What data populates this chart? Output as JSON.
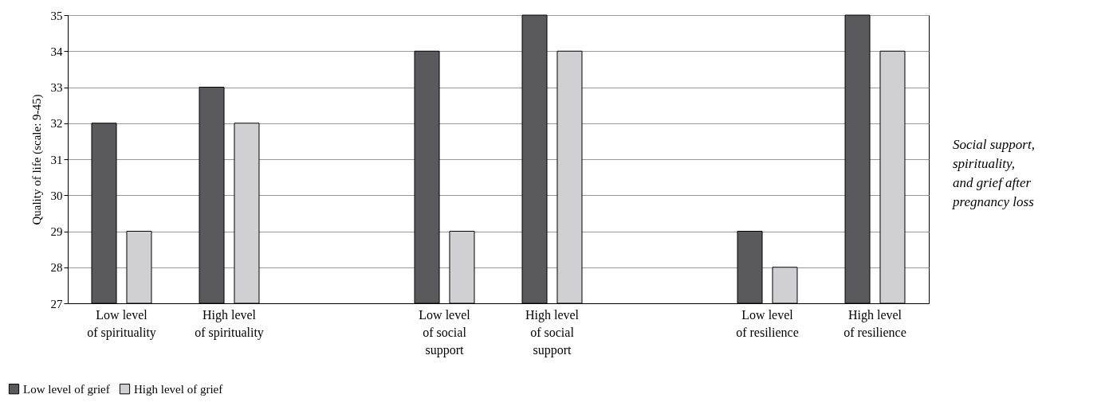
{
  "chart_data": {
    "type": "bar",
    "title": "Social support,\nspirituality,\nand grief after\npregnancy loss",
    "ylabel": "Quality of life (scale: 9-45)",
    "categories": [
      "Low level\nof spirituality",
      "High level\nof spirituality",
      null,
      "Low level\nof social\nsupport",
      "High level\nof social\nsupport",
      null,
      "Low level\nof resilience",
      "High level\nof resilience"
    ],
    "series": [
      {
        "name": "Low level of grief",
        "color": "#5a5a5c",
        "values": [
          32,
          33,
          null,
          34,
          35,
          null,
          29,
          35
        ]
      },
      {
        "name": "High level of grief",
        "color": "#d0d0d2",
        "values": [
          29,
          32,
          null,
          29,
          34,
          null,
          28,
          34
        ]
      }
    ],
    "ylim": [
      27,
      35
    ],
    "yticks": [
      27,
      28,
      29,
      30,
      31,
      32,
      33,
      34,
      35
    ],
    "grid": "y",
    "legend": "bottom left"
  }
}
